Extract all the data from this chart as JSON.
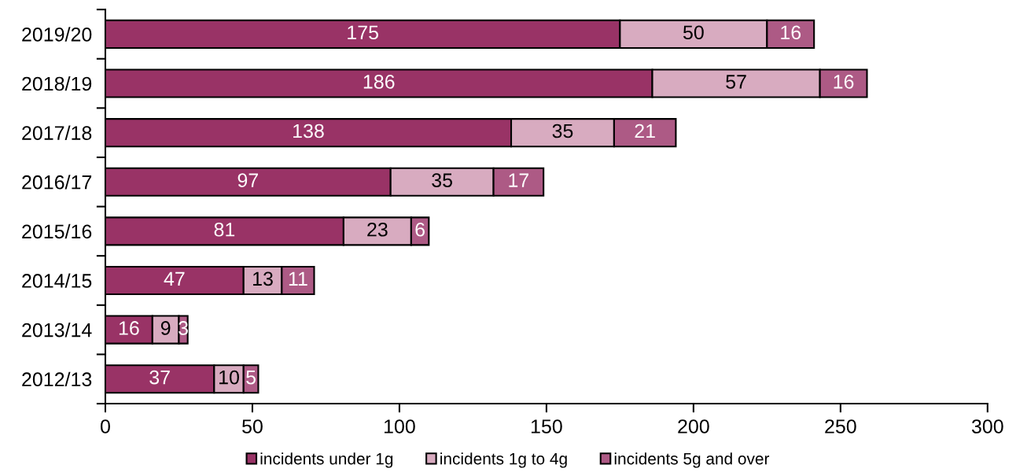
{
  "chart_data": {
    "type": "bar",
    "orientation": "horizontal",
    "stacked": true,
    "categories": [
      "2019/20",
      "2018/19",
      "2017/18",
      "2016/17",
      "2015/16",
      "2014/15",
      "2013/14",
      "2012/13"
    ],
    "series": [
      {
        "name": "incidents under 1g",
        "color": "#993366",
        "values": [
          175,
          186,
          138,
          97,
          81,
          47,
          16,
          37
        ]
      },
      {
        "name": "incidents 1g to 4g",
        "color": "#d8abc0",
        "values": [
          50,
          57,
          35,
          35,
          23,
          13,
          9,
          10
        ]
      },
      {
        "name": "incidents 5g and over",
        "color": "#ad5a85",
        "values": [
          16,
          16,
          21,
          17,
          6,
          11,
          3,
          5
        ]
      }
    ],
    "xlim": [
      0,
      300
    ],
    "xticks": [
      0,
      50,
      100,
      150,
      200,
      250,
      300
    ],
    "data_labels": true,
    "legend": "bottom",
    "grid": false
  }
}
